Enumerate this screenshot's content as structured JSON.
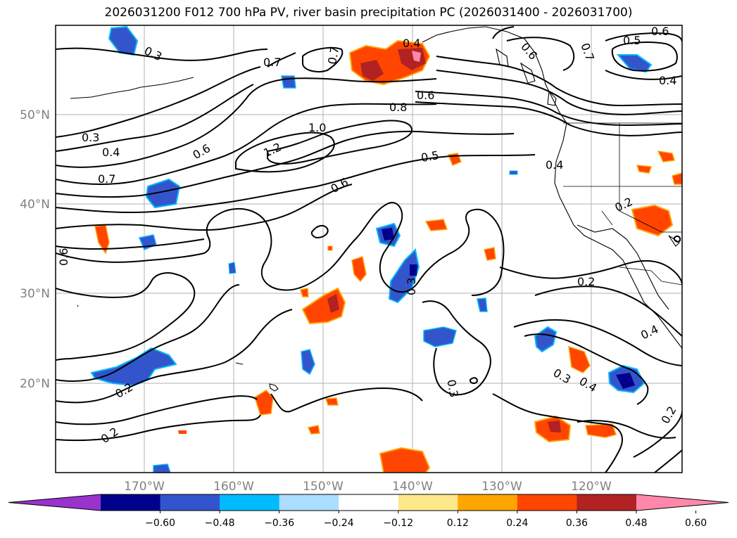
{
  "title": "2026031200 F012 700 hPa PV, river basin precipitation PC (2026031400 - 2026031700)",
  "map": {
    "latitude_labels": [
      "50°N",
      "40°N",
      "30°N",
      "20°N"
    ],
    "longitude_labels": [
      "170°W",
      "160°W",
      "150°W",
      "140°W",
      "130°W",
      "120°W"
    ],
    "pv_contour_labels": [
      "0.3",
      "0.7",
      "0.7",
      "0.4",
      "0.6",
      "0.7",
      "0.6",
      "0.5",
      "0.4",
      "0.6",
      "0.8",
      "0.3",
      "0.4",
      "0.6",
      "1.0",
      "1.2",
      "0.5",
      "0.4",
      "0.7",
      "0.6",
      "0.2",
      "0.6",
      "0.2",
      "0.3",
      "0.4",
      "0.3",
      "0.4",
      "0.3",
      "0.2",
      "0.2",
      "0.2"
    ],
    "colors": {
      "land_outline": "#000000",
      "grid": "#b0b0b0",
      "contour": "#000000"
    }
  },
  "colorbar": {
    "ticks": [
      "−0.60",
      "−0.48",
      "−0.36",
      "−0.24",
      "−0.12",
      "0.12",
      "0.24",
      "0.36",
      "0.48",
      "0.60"
    ],
    "colors": [
      "#9933cc",
      "#00008b",
      "#3355cc",
      "#00bbff",
      "#aaddff",
      "#ffffff",
      "#ffe88c",
      "#ffa500",
      "#ff4500",
      "#b22222",
      "#ff88aa"
    ]
  }
}
